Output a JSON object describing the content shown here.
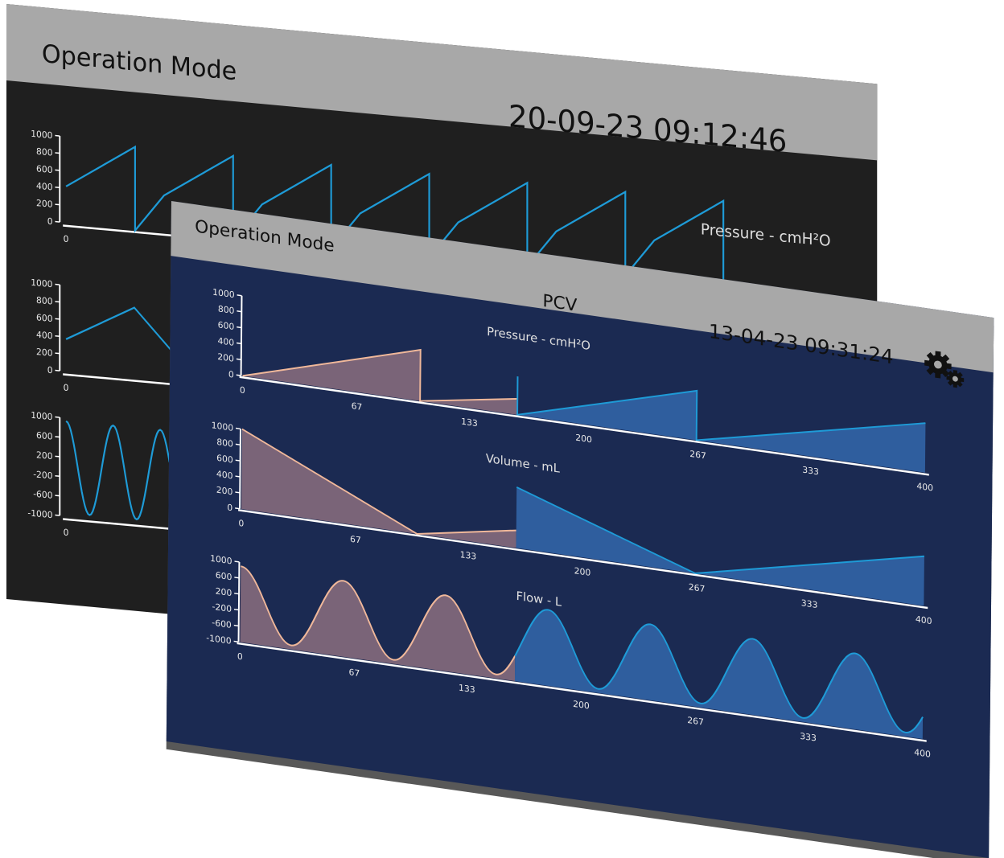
{
  "back_window": {
    "title": "Operation Mode",
    "datetime": "20-09-23 09:12:46",
    "plot_label": "Pressure - cmH²O",
    "y_ticks_top": [
      "1000",
      "800",
      "600",
      "400",
      "200",
      "0"
    ],
    "y_ticks_mid": [
      "1000",
      "800",
      "600",
      "400",
      "200",
      "0"
    ],
    "y_ticks_bottom": [
      "1000",
      "600",
      "200",
      "-200",
      "-600",
      "-1000"
    ],
    "x_tick_zero": "0",
    "line_color": "#1e9bd7"
  },
  "front_window": {
    "title": "Operation Mode",
    "mode": "PCV",
    "datetime": "13-04-23 09:31:24",
    "settings_icon": "gears-icon",
    "colors": {
      "history": "#7a6478",
      "history_line": "#f0b89a",
      "live": "#2f5e9e",
      "live_line": "#1e9bd7"
    }
  },
  "chart_data": [
    {
      "type": "area",
      "title": "Pressure - cmH²O",
      "y_ticks": [
        "1000",
        "800",
        "600",
        "400",
        "200",
        "0"
      ],
      "x_ticks": [
        "0",
        "67",
        "133",
        "200",
        "267",
        "333",
        "400"
      ],
      "ylim": [
        0,
        1000
      ],
      "xlim": [
        0,
        400
      ],
      "series": [
        {
          "values": [
            [
              0,
              0
            ],
            [
              104,
              640
            ],
            [
              104,
              0
            ],
            [
              161,
              200
            ]
          ]
        },
        {
          "values": [
            [
              161,
              480
            ],
            [
              161,
              0
            ],
            [
              266,
              620
            ],
            [
              266,
              0
            ],
            [
              400,
              620
            ]
          ]
        }
      ]
    },
    {
      "type": "area",
      "title": "Volume - mL",
      "y_ticks": [
        "1000",
        "800",
        "600",
        "400",
        "200",
        "0"
      ],
      "x_ticks": [
        "0",
        "67",
        "133",
        "200",
        "267",
        "333",
        "400"
      ],
      "ylim": [
        0,
        1000
      ],
      "xlim": [
        0,
        400
      ],
      "series": [
        {
          "values": [
            [
              0,
              1000
            ],
            [
              103,
              0
            ],
            [
              161,
              220
            ]
          ]
        },
        {
          "values": [
            [
              161,
              760
            ],
            [
              266,
              0
            ],
            [
              400,
              620
            ]
          ]
        }
      ]
    },
    {
      "type": "area",
      "title": "Flow - L",
      "y_ticks": [
        "1000",
        "600",
        "200",
        "-200",
        "-600",
        "-1000"
      ],
      "x_ticks": [
        "0",
        "67",
        "133",
        "200",
        "267",
        "333",
        "400"
      ],
      "ylim": [
        -1000,
        1000
      ],
      "xlim": [
        0,
        400
      ],
      "series": [
        {
          "values": "sine",
          "amplitude": 900,
          "x_range": [
            0,
            161
          ]
        },
        {
          "values": "sine",
          "amplitude": 900,
          "x_range": [
            161,
            400
          ]
        }
      ]
    }
  ]
}
